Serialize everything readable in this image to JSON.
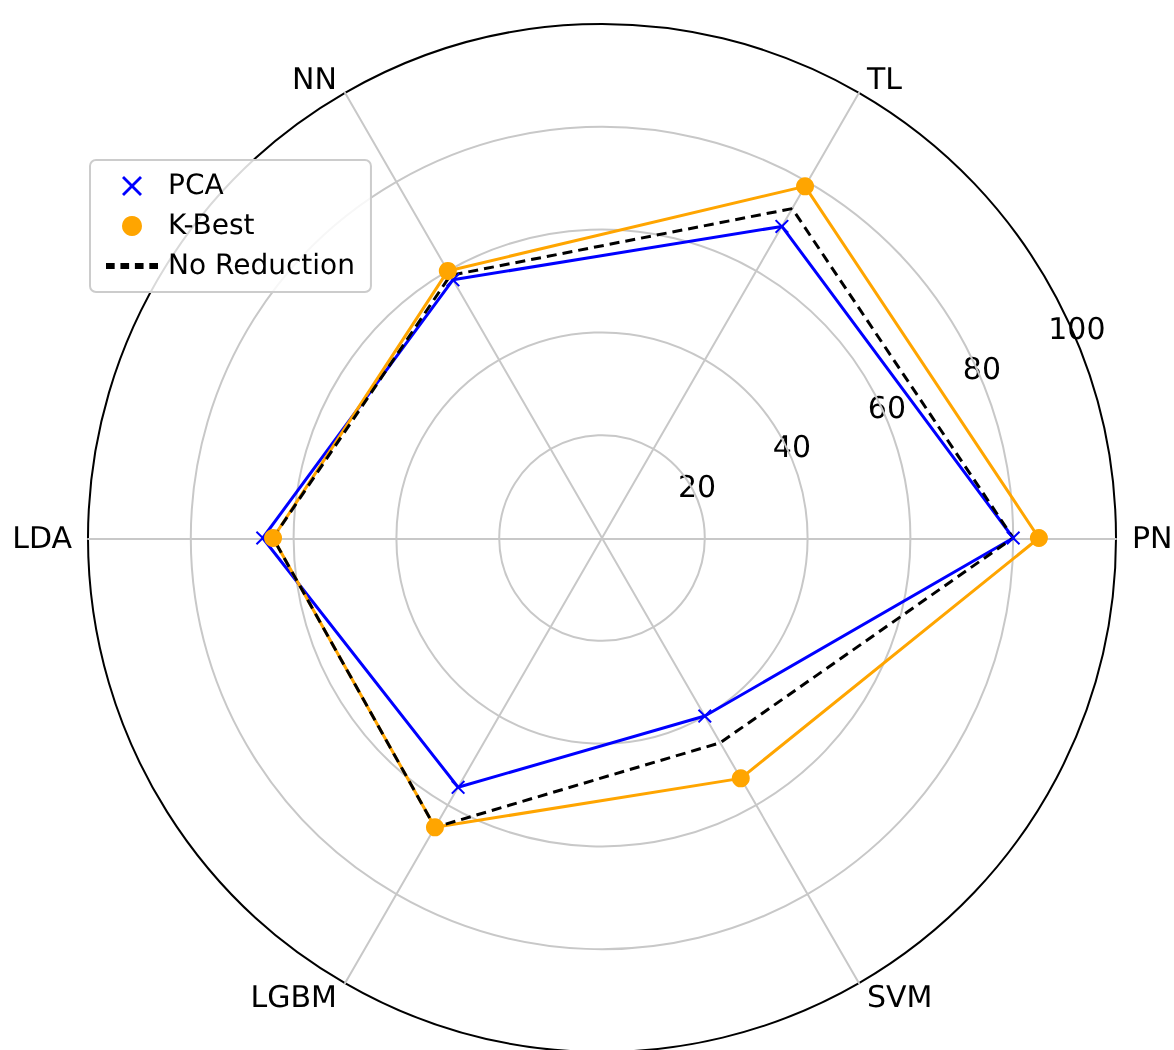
{
  "chart_data": {
    "type": "radar",
    "categories": [
      "TL",
      "PN",
      "SVM",
      "LGBM",
      "LDA",
      "NN"
    ],
    "series": [
      {
        "name": "PCA",
        "color": "#0000ff",
        "marker": "cross",
        "line_style": "solid",
        "values": [
          70,
          80,
          40,
          56,
          66,
          58
        ]
      },
      {
        "name": "K-Best",
        "color": "#ffa500",
        "marker": "circle",
        "line_style": "solid",
        "values": [
          79,
          85,
          54,
          65,
          64,
          60
        ]
      },
      {
        "name": "No Reduction",
        "color": "#000000",
        "marker": "none",
        "line_style": "dashed",
        "values": [
          74,
          80,
          46,
          65,
          64,
          59
        ]
      }
    ],
    "ylim": [
      0,
      100
    ],
    "yticks": [
      20,
      40,
      60,
      80,
      100
    ],
    "grid": true,
    "legend": "top left"
  }
}
